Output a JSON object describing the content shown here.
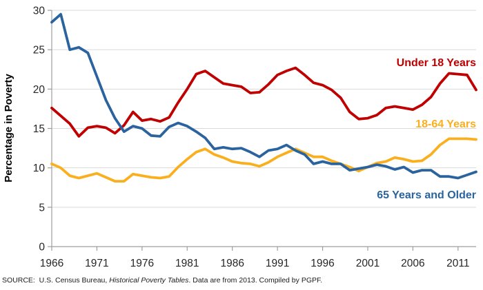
{
  "figure": {
    "y_axis_title": "Percentage in Poverty",
    "source_prefix": "SOURCE:  U.S. Census Bureau, ",
    "source_italic": "Historical Poverty Tables",
    "source_suffix": ". Data are from 2013. Compiled by PGPF."
  },
  "chart_data": {
    "type": "line",
    "title": "",
    "xlabel": "",
    "ylabel": "Percentage in Poverty",
    "ylim": [
      0,
      30
    ],
    "grid": true,
    "grid_color": "#D9D9D9",
    "axis_color": "#9E9E9E",
    "tick_label_color": "#262626",
    "legend_position": "inline-labels-right",
    "x_ticks": [
      1966,
      1971,
      1976,
      1981,
      1986,
      1991,
      1996,
      2001,
      2006,
      2011
    ],
    "y_ticks": [
      0,
      5,
      10,
      15,
      20,
      25,
      30
    ],
    "x": [
      1966,
      1967,
      1968,
      1969,
      1970,
      1971,
      1972,
      1973,
      1974,
      1975,
      1976,
      1977,
      1978,
      1979,
      1980,
      1981,
      1982,
      1983,
      1984,
      1985,
      1986,
      1987,
      1988,
      1989,
      1990,
      1991,
      1992,
      1993,
      1994,
      1995,
      1996,
      1997,
      1998,
      1999,
      2000,
      2001,
      2002,
      2003,
      2004,
      2005,
      2006,
      2007,
      2008,
      2009,
      2010,
      2011,
      2012,
      2013
    ],
    "series": [
      {
        "name": "Under 18 Years",
        "color": "#C00000",
        "values": [
          17.6,
          16.6,
          15.6,
          14.0,
          15.1,
          15.3,
          15.1,
          14.4,
          15.4,
          17.1,
          16.0,
          16.2,
          15.9,
          16.4,
          18.3,
          20.0,
          21.9,
          22.3,
          21.5,
          20.7,
          20.5,
          20.3,
          19.5,
          19.6,
          20.6,
          21.8,
          22.3,
          22.7,
          21.8,
          20.8,
          20.5,
          19.9,
          18.9,
          17.1,
          16.2,
          16.3,
          16.7,
          17.6,
          17.8,
          17.6,
          17.4,
          18.0,
          19.0,
          20.7,
          22.0,
          21.9,
          21.8,
          19.9
        ]
      },
      {
        "name": "18-64  Years",
        "color": "#FAAF1E",
        "values": [
          10.5,
          10.0,
          9.0,
          8.7,
          9.0,
          9.3,
          8.8,
          8.3,
          8.3,
          9.2,
          9.0,
          8.8,
          8.7,
          8.9,
          10.1,
          11.1,
          12.0,
          12.4,
          11.7,
          11.3,
          10.8,
          10.6,
          10.5,
          10.2,
          10.7,
          11.4,
          11.9,
          12.4,
          11.9,
          11.4,
          11.4,
          10.9,
          10.5,
          10.1,
          9.6,
          10.1,
          10.6,
          10.8,
          11.3,
          11.1,
          10.8,
          10.9,
          11.7,
          12.9,
          13.7,
          13.7,
          13.7,
          13.6
        ]
      },
      {
        "name": "65 Years and Older",
        "color": "#2A639E",
        "values": [
          28.5,
          29.5,
          25.0,
          25.3,
          24.6,
          21.6,
          18.6,
          16.3,
          14.6,
          15.3,
          15.0,
          14.1,
          14.0,
          15.2,
          15.7,
          15.3,
          14.6,
          13.8,
          12.4,
          12.6,
          12.4,
          12.5,
          12.0,
          11.4,
          12.2,
          12.4,
          12.9,
          12.2,
          11.7,
          10.5,
          10.8,
          10.5,
          10.5,
          9.7,
          9.9,
          10.1,
          10.4,
          10.2,
          9.8,
          10.1,
          9.4,
          9.7,
          9.7,
          8.9,
          8.9,
          8.7,
          9.1,
          9.5
        ]
      }
    ]
  }
}
